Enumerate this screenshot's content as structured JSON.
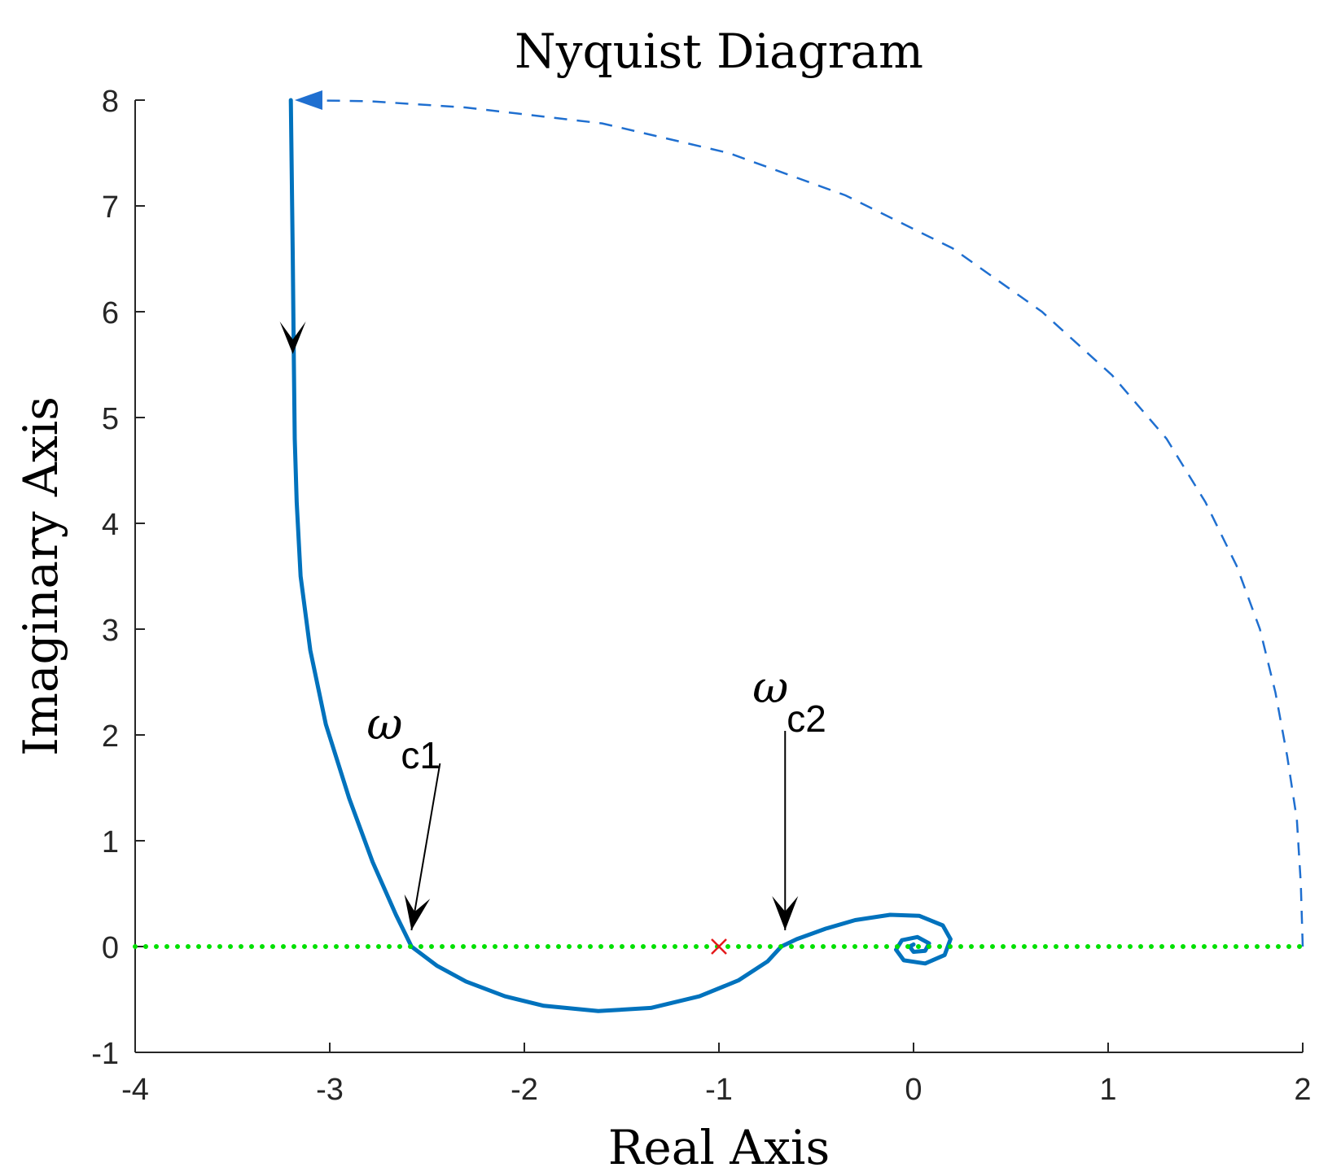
{
  "chart_data": {
    "type": "line",
    "title": "Nyquist Diagram",
    "xlabel": "Real Axis",
    "ylabel": "Imaginary Axis",
    "xlim": [
      -4,
      2
    ],
    "ylim": [
      -1,
      8
    ],
    "xticks": [
      -4,
      -3,
      -2,
      -1,
      0,
      1,
      2
    ],
    "yticks": [
      -1,
      0,
      1,
      2,
      3,
      4,
      5,
      6,
      7,
      8
    ],
    "grid": false,
    "colors": {
      "curve": "#0072BD",
      "arc": "#1f6fd0",
      "real_axis_line": "#00e000",
      "critical_point": "#e41a1c",
      "arrows": "#000000"
    },
    "series": [
      {
        "style": "solid",
        "points": [
          [
            -3.2,
            8.0
          ],
          [
            -3.19,
            6.5
          ],
          [
            -3.185,
            5.6
          ],
          [
            -3.18,
            4.8
          ],
          [
            -3.17,
            4.2
          ],
          [
            -3.15,
            3.5
          ],
          [
            -3.1,
            2.8
          ],
          [
            -3.02,
            2.1
          ],
          [
            -2.9,
            1.4
          ],
          [
            -2.78,
            0.8
          ],
          [
            -2.66,
            0.3
          ],
          [
            -2.58,
            0.0
          ],
          [
            -2.45,
            -0.18
          ],
          [
            -2.3,
            -0.33
          ],
          [
            -2.1,
            -0.47
          ],
          [
            -1.9,
            -0.56
          ],
          [
            -1.62,
            -0.61
          ],
          [
            -1.35,
            -0.58
          ],
          [
            -1.1,
            -0.47
          ],
          [
            -0.9,
            -0.32
          ],
          [
            -0.75,
            -0.14
          ],
          [
            -0.68,
            0.0
          ],
          [
            -0.6,
            0.07
          ],
          [
            -0.45,
            0.17
          ],
          [
            -0.3,
            0.25
          ],
          [
            -0.12,
            0.3
          ],
          [
            0.03,
            0.29
          ],
          [
            0.15,
            0.2
          ],
          [
            0.19,
            0.07
          ],
          [
            0.16,
            -0.08
          ],
          [
            0.06,
            -0.16
          ],
          [
            -0.05,
            -0.13
          ],
          [
            -0.09,
            -0.03
          ],
          [
            -0.06,
            0.06
          ],
          [
            0.02,
            0.09
          ],
          [
            0.08,
            0.03
          ],
          [
            0.06,
            -0.04
          ],
          [
            0.0,
            -0.05
          ],
          [
            -0.02,
            0.0
          ],
          [
            0.0,
            0.02
          ]
        ]
      },
      {
        "style": "dashed",
        "points": [
          [
            2.0,
            0.0
          ],
          [
            1.99,
            0.6
          ],
          [
            1.97,
            1.2
          ],
          [
            1.92,
            1.8
          ],
          [
            1.86,
            2.4
          ],
          [
            1.78,
            3.0
          ],
          [
            1.66,
            3.6
          ],
          [
            1.5,
            4.2
          ],
          [
            1.3,
            4.8
          ],
          [
            1.02,
            5.4
          ],
          [
            0.66,
            6.0
          ],
          [
            0.2,
            6.6
          ],
          [
            -0.35,
            7.1
          ],
          [
            -0.95,
            7.5
          ],
          [
            -1.6,
            7.78
          ],
          [
            -2.3,
            7.93
          ],
          [
            -2.8,
            7.99
          ],
          [
            -3.18,
            8.0
          ]
        ]
      },
      {
        "style": "dotted",
        "points": [
          [
            -4.0,
            0.0
          ],
          [
            2.0,
            0.0
          ]
        ]
      }
    ],
    "critical_point": {
      "x": -1,
      "y": 0,
      "marker": "x"
    },
    "annotations": [
      {
        "label": "ω",
        "subscript": "c1",
        "tip": [
          -2.58,
          0.0
        ]
      },
      {
        "label": "ω",
        "subscript": "c2",
        "tip": [
          -0.66,
          0.0
        ]
      }
    ],
    "direction_arrow": {
      "at": [
        -3.19,
        5.6
      ],
      "direction": "down"
    }
  }
}
